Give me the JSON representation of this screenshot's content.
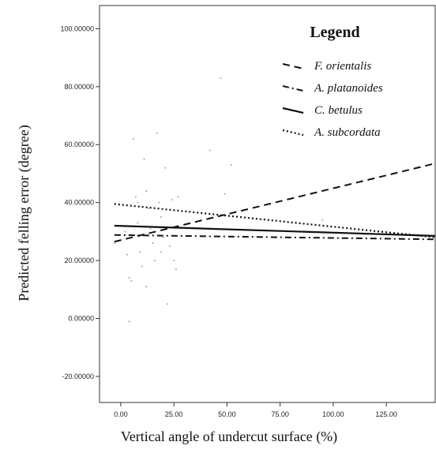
{
  "chart_data": {
    "type": "scatter",
    "title": "",
    "xlabel": "Vertical angle of undercut surface (%)",
    "ylabel": "Predicted felling error (degree)",
    "xlim": [
      -10,
      148
    ],
    "ylim": [
      -29,
      108
    ],
    "x_ticks": [
      0,
      25,
      50,
      75,
      100,
      125
    ],
    "x_tick_labels": [
      "0.00",
      "25.00",
      "50.00",
      "75.00",
      "100.00",
      "125.00"
    ],
    "y_ticks": [
      -20,
      0,
      20,
      40,
      60,
      80,
      100
    ],
    "y_tick_labels": [
      "-20.00000",
      "0.00000",
      "20.00000",
      "40.00000",
      "60.00000",
      "80.00000",
      "100.00000"
    ],
    "grid": false,
    "legend": {
      "title": "Legend",
      "placement": "top-right",
      "entries": [
        {
          "label": "F.  orientalis",
          "dash": "dashed"
        },
        {
          "label": "A.  platanoides",
          "dash": "dash-dot"
        },
        {
          "label": "C.  betulus",
          "dash": "solid"
        },
        {
          "label": "A.  subcordata",
          "dash": "dotted"
        }
      ]
    },
    "series": [
      {
        "label": "F.  orientalis",
        "type": "line",
        "x": [
          -3,
          148
        ],
        "y": [
          26.5,
          53.5
        ]
      },
      {
        "label": "A.  platanoides",
        "type": "line",
        "x": [
          -3,
          148
        ],
        "y": [
          28.8,
          27.3
        ]
      },
      {
        "label": "C.  betulus",
        "type": "line",
        "x": [
          -3,
          148
        ],
        "y": [
          32.0,
          28.5
        ]
      },
      {
        "label": "A.  subcordata",
        "type": "line",
        "x": [
          -3,
          148
        ],
        "y": [
          39.5,
          28.0
        ]
      }
    ],
    "points": [
      {
        "x": -3,
        "y": 26
      },
      {
        "x": 2,
        "y": 30
      },
      {
        "x": 3,
        "y": 22
      },
      {
        "x": 4,
        "y": 14
      },
      {
        "x": 5,
        "y": 13
      },
      {
        "x": 6,
        "y": 62
      },
      {
        "x": 7,
        "y": 42
      },
      {
        "x": 8,
        "y": 33
      },
      {
        "x": 9,
        "y": 23
      },
      {
        "x": 10,
        "y": 18
      },
      {
        "x": 11,
        "y": 55
      },
      {
        "x": 12,
        "y": 44
      },
      {
        "x": 13,
        "y": 38
      },
      {
        "x": 14,
        "y": 31
      },
      {
        "x": 15,
        "y": 26
      },
      {
        "x": 16,
        "y": 20
      },
      {
        "x": 17,
        "y": 64
      },
      {
        "x": 18,
        "y": 40
      },
      {
        "x": 19,
        "y": 35
      },
      {
        "x": 20,
        "y": 28
      },
      {
        "x": 21,
        "y": 52
      },
      {
        "x": 22,
        "y": 5
      },
      {
        "x": 23,
        "y": 25
      },
      {
        "x": 24,
        "y": 41
      },
      {
        "x": 25,
        "y": 20
      },
      {
        "x": 26,
        "y": 17
      },
      {
        "x": 27,
        "y": 42
      },
      {
        "x": 8,
        "y": 40
      },
      {
        "x": 4,
        "y": -1
      },
      {
        "x": 12,
        "y": 11
      },
      {
        "x": 19,
        "y": 23
      },
      {
        "x": 42,
        "y": 58
      },
      {
        "x": 47,
        "y": 83
      },
      {
        "x": 49,
        "y": 43
      },
      {
        "x": 52,
        "y": 53
      },
      {
        "x": 95,
        "y": 34
      }
    ]
  }
}
